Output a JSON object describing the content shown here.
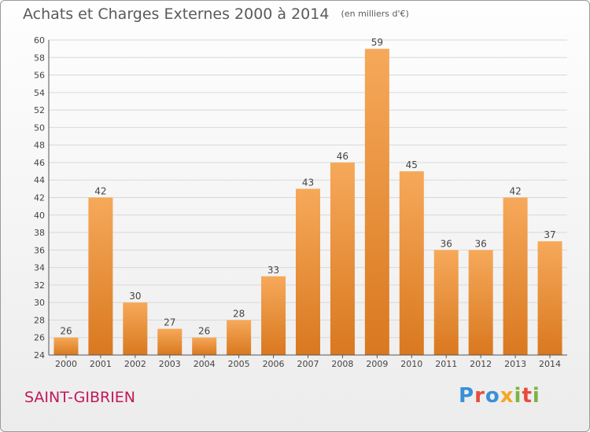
{
  "title": "Achats et Charges Externes 2000 à 2014",
  "subtitle": "(en milliers d'€)",
  "commune": "SAINT-GIBRIEN",
  "logo": {
    "text": "Proxiti",
    "letters": [
      "P",
      "r",
      "o",
      "x",
      "i",
      "t",
      "i"
    ],
    "colors": [
      "#3a8fd8",
      "#e74c3c",
      "#3a8fd8",
      "#f5a623",
      "#7cb342",
      "#e74c3c",
      "#7cb342"
    ]
  },
  "colors": {
    "bar_top": "#f6a95a",
    "bar_bottom": "#d9781f",
    "commune": "#c2185b",
    "grid": "#d8d8d8",
    "axis": "#555555"
  },
  "chart_data": {
    "type": "bar",
    "categories": [
      "2000",
      "2001",
      "2002",
      "2003",
      "2004",
      "2005",
      "2006",
      "2007",
      "2008",
      "2009",
      "2010",
      "2011",
      "2012",
      "2013",
      "2014"
    ],
    "values": [
      26,
      42,
      30,
      27,
      26,
      28,
      33,
      43,
      46,
      59,
      45,
      36,
      36,
      42,
      37
    ],
    "title": "Achats et Charges Externes 2000 à 2014",
    "subtitle": "(en milliers d'€)",
    "xlabel": "",
    "ylabel": "",
    "ylim": [
      24,
      60
    ],
    "yticks": [
      24,
      26,
      28,
      30,
      32,
      34,
      36,
      38,
      40,
      42,
      44,
      46,
      48,
      50,
      52,
      54,
      56,
      58,
      60
    ],
    "grid": true,
    "legend": "none",
    "data_labels": true
  }
}
